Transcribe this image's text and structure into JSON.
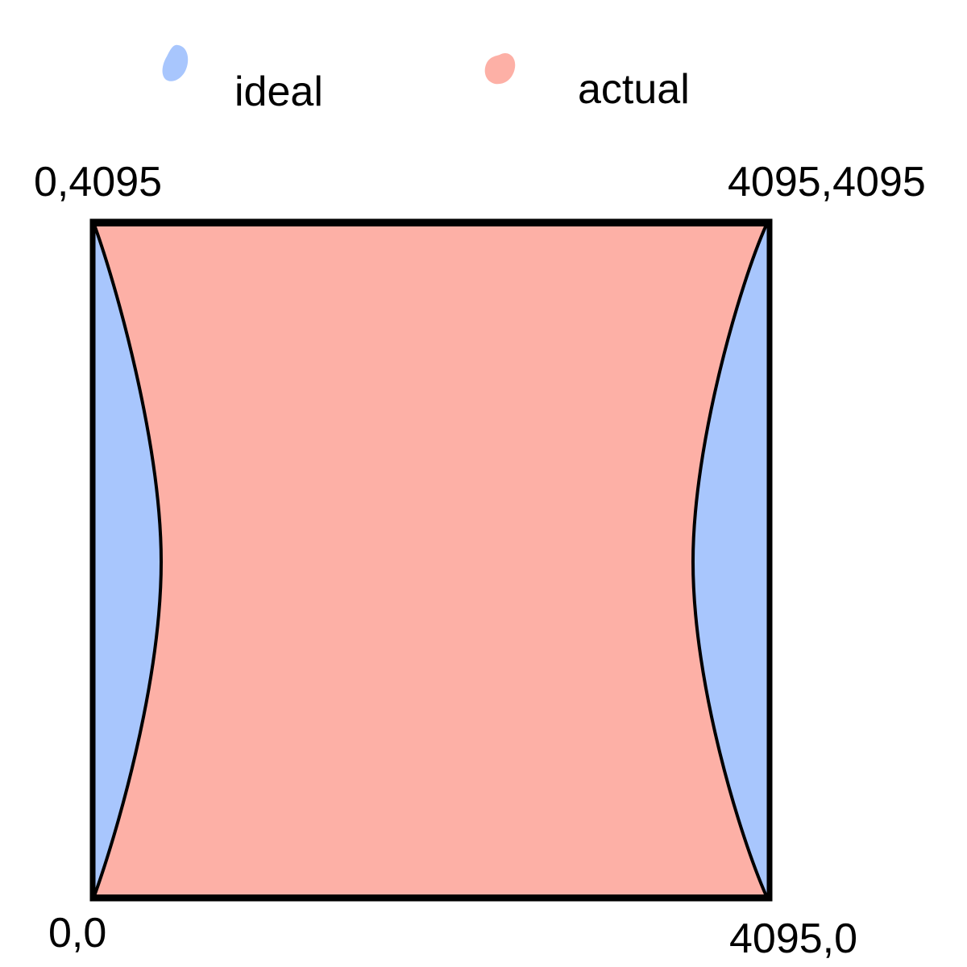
{
  "legend": {
    "items": [
      {
        "label": "ideal",
        "color": "#a8c6fd"
      },
      {
        "label": "actual",
        "color": "#fdb0a6"
      }
    ]
  },
  "corners": {
    "top_left": "0,4095",
    "top_right": "4095,4095",
    "bottom_left": "0,0",
    "bottom_right": "4095,0"
  },
  "colors": {
    "ideal": "#a8c6fd",
    "actual": "#fdb0a6",
    "outline": "#000000"
  }
}
